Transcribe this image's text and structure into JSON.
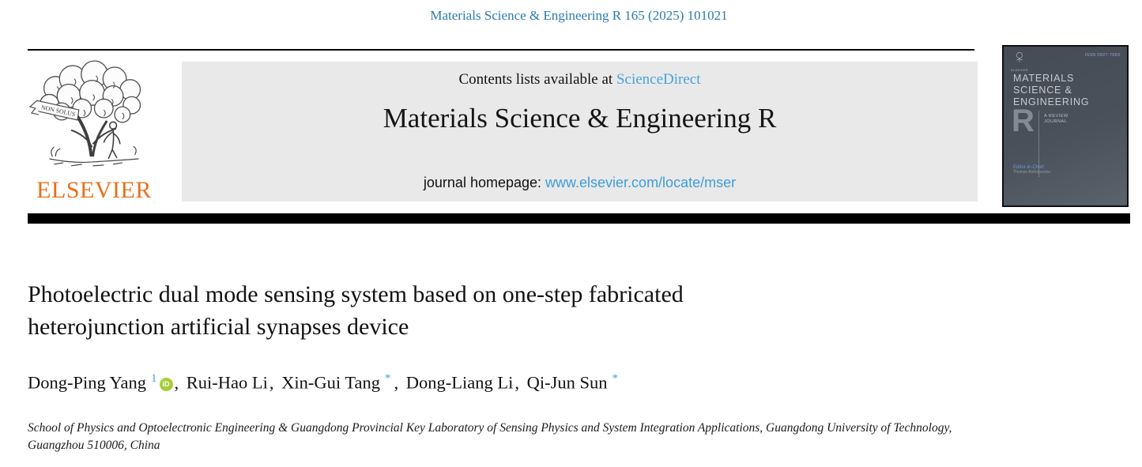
{
  "citation": "Materials Science & Engineering R 165 (2025) 101021",
  "header": {
    "contents_prefix": "Contents lists available at ",
    "contents_link": "ScienceDirect",
    "journal_title": "Materials Science & Engineering R",
    "homepage_prefix": "journal homepage: ",
    "homepage_link": "www.elsevier.com/locate/mser",
    "elsevier_logo_text": "ELSEVIER",
    "non_solus": "NON SOLUS"
  },
  "cover": {
    "issn": "ISSN 0927-796X",
    "mini_logo_text": "ELSEVIER",
    "title_lines": [
      "MATERIALS",
      "SCIENCE &",
      "ENGINEERING"
    ],
    "big_letter": "R",
    "subtitle_lines": [
      "A REVIEW",
      "JOURNAL"
    ],
    "editor_label": "Editor-in-Chief:",
    "editor_name": "Thomas Anthopoulos"
  },
  "article": {
    "title_line1": "Photoelectric dual mode sensing system based on one-step fabricated",
    "title_line2": "heterojunction artificial synapses device",
    "authors": [
      {
        "name": "Dong-Ping Yang",
        "sup": "1",
        "orcid": true
      },
      {
        "name": "Rui-Hao Li",
        "sup": "",
        "orcid": false
      },
      {
        "name": "Xin-Gui Tang",
        "sup": "*",
        "orcid": false
      },
      {
        "name": "Dong-Liang Li",
        "sup": "",
        "orcid": false
      },
      {
        "name": "Qi-Jun Sun",
        "sup": "*",
        "orcid": false
      }
    ],
    "authors_separator": ", ",
    "orcid_label": "iD",
    "affiliation": "School of Physics and Optoelectronic Engineering & Guangdong Provincial Key Laboratory of Sensing Physics and System Integration Applications, Guangdong University of Technology, Guangzhou 510006, China"
  },
  "colors": {
    "citation-blue": "#2b7cab",
    "link-light-blue": "#49a2d9",
    "homepage-link-blue": "#3d9dd8",
    "superscript-blue": "#4aa3dc",
    "orcid-green": "#a6ce39",
    "elsevier-orange": "#e8701a",
    "header-box-gray": "#e9e9e9",
    "cover-bg-dark": "#454c56",
    "cover-bg-light": "#5a626c",
    "cover-text": "#c6cbd0",
    "cover-editor-blue": "#6d9bd4"
  }
}
